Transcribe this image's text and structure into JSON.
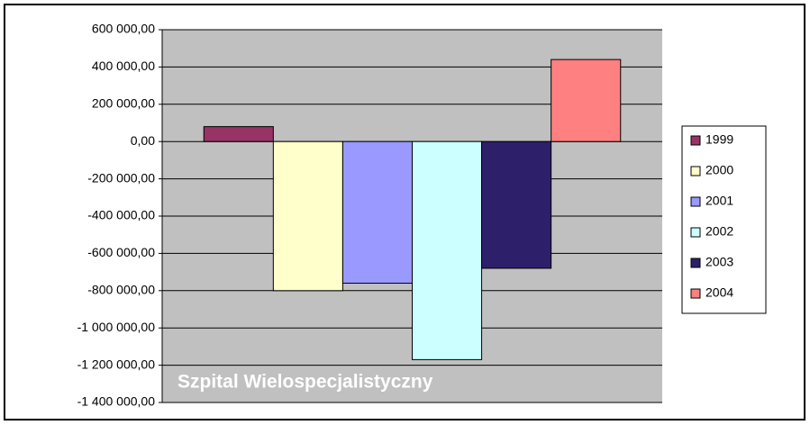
{
  "chart_data": {
    "type": "bar",
    "annotation": "Szpital Wielospecjalistyczny",
    "series": [
      {
        "name": "1999",
        "color": "#993366",
        "values": [
          80000
        ]
      },
      {
        "name": "2000",
        "color": "#ffffcc",
        "values": [
          -800000
        ]
      },
      {
        "name": "2001",
        "color": "#9999ff",
        "values": [
          -760000
        ]
      },
      {
        "name": "2002",
        "color": "#ccffff",
        "values": [
          -1170000
        ]
      },
      {
        "name": "2003",
        "color": "#2e1f6b",
        "values": [
          -680000
        ]
      },
      {
        "name": "2004",
        "color": "#ff8080",
        "values": [
          440000
        ]
      }
    ],
    "ylim": [
      -1400000,
      600000
    ],
    "yticks": [
      {
        "value": 600000,
        "label": "600 000,00"
      },
      {
        "value": 400000,
        "label": "400 000,00"
      },
      {
        "value": 200000,
        "label": "200 000,00"
      },
      {
        "value": 0,
        "label": "0,00"
      },
      {
        "value": -200000,
        "label": "-200 000,00"
      },
      {
        "value": -400000,
        "label": "-400 000,00"
      },
      {
        "value": -600000,
        "label": "-600 000,00"
      },
      {
        "value": -800000,
        "label": "-800 000,00"
      },
      {
        "value": -1000000,
        "label": "-1 000 000,00"
      },
      {
        "value": -1200000,
        "label": "-1 200 000,00"
      },
      {
        "value": -1400000,
        "label": "-1 400 000,00"
      }
    ],
    "grid": true,
    "legend": "right"
  }
}
